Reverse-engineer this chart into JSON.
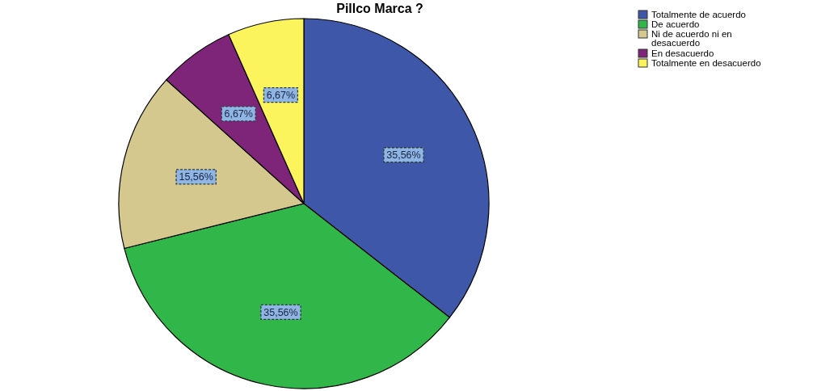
{
  "chart_data": {
    "type": "pie",
    "title": "Pillco Marca ?",
    "categories": [
      "Totalmente de acuerdo",
      "De acuerdo",
      "Ni de acuerdo ni en desacuerdo",
      "En desacuerdo",
      "Totalmente en desacuerdo"
    ],
    "values": [
      35.56,
      35.56,
      15.56,
      6.67,
      6.67
    ],
    "value_labels": [
      "35,56%",
      "35,56%",
      "15,56%",
      "6,67%",
      "6,67%"
    ],
    "colors": [
      "#3f57a8",
      "#31b749",
      "#d4c88f",
      "#7e2479",
      "#fbf45c"
    ],
    "legend": "top right"
  }
}
